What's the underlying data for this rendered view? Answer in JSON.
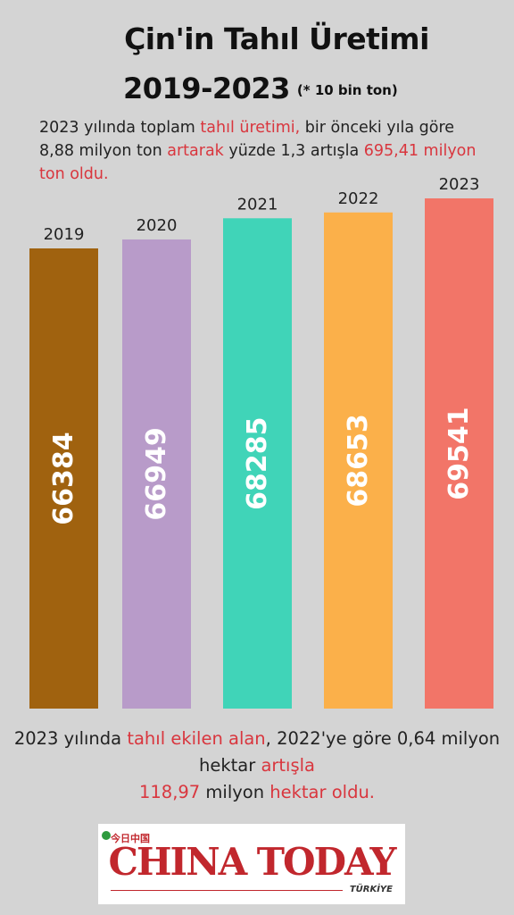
{
  "title": "Çin'in Tahıl Üretimi",
  "subtitle": "2019-2023",
  "unit_note": "(* 10 bin ton)",
  "intro": {
    "p1": "2023 yılında toplam ",
    "h1": "tahıl üretimi,",
    "p2": " bir önceki yıla göre 8,88 milyon ton ",
    "h2": "artarak",
    "p3": " yüzde 1,3 artışla ",
    "h3": "695,41 milyon ton oldu."
  },
  "chart_data": {
    "type": "bar",
    "categories": [
      "2019",
      "2020",
      "2021",
      "2022",
      "2023"
    ],
    "values": [
      66384,
      66949,
      68285,
      68653,
      69541
    ],
    "colors": [
      "#a0620f",
      "#b89bc9",
      "#40d4b8",
      "#fbb04a",
      "#f27568"
    ]
  },
  "footer": {
    "p1": "2023 yılında ",
    "h1": "tahıl ekilen alan",
    "p2": ", 2022'ye göre 0,64 milyon ",
    "p3": "hektar",
    "h2": " artışla",
    "h3": "118,97",
    "p4": " milyon ",
    "h4": "hektar oldu."
  },
  "logo": {
    "chinese": "今日中国",
    "main": "CHINA TODAY",
    "sub": "TÜRKİYE"
  }
}
